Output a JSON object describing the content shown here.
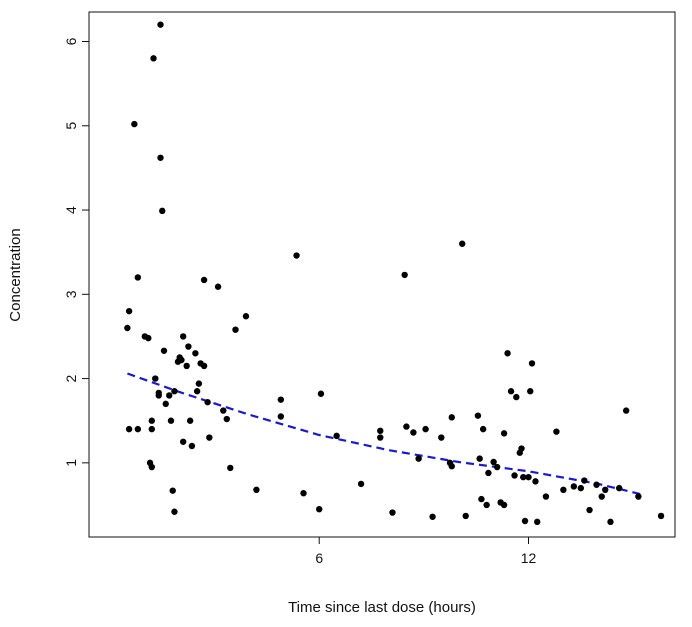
{
  "chart_data": {
    "type": "scatter",
    "title": "",
    "xlabel": "Time since last dose (hours)",
    "ylabel": "Concentration",
    "xlim": [
      -0.6,
      16.2
    ],
    "ylim": [
      0.12,
      6.35
    ],
    "xticks": [
      6,
      12
    ],
    "yticks": [
      1,
      2,
      3,
      4,
      5,
      6
    ],
    "grid": false,
    "point_color": "#000000",
    "series": [
      {
        "points": [
          [
            0.55,
            2.8
          ],
          [
            0.5,
            2.6
          ],
          [
            0.55,
            1.4
          ],
          [
            0.8,
            1.4
          ],
          [
            0.7,
            5.02
          ],
          [
            0.8,
            3.2
          ],
          [
            1.0,
            2.5
          ],
          [
            1.1,
            2.48
          ],
          [
            1.15,
            1.0
          ],
          [
            1.2,
            0.95
          ],
          [
            1.2,
            1.4
          ],
          [
            1.2,
            1.5
          ],
          [
            1.25,
            5.8
          ],
          [
            1.3,
            2.0
          ],
          [
            1.4,
            1.8
          ],
          [
            1.4,
            1.83
          ],
          [
            1.45,
            6.2
          ],
          [
            1.45,
            4.62
          ],
          [
            1.5,
            3.99
          ],
          [
            1.55,
            2.33
          ],
          [
            1.6,
            1.7
          ],
          [
            1.7,
            1.8
          ],
          [
            1.75,
            1.5
          ],
          [
            1.8,
            0.67
          ],
          [
            1.85,
            0.42
          ],
          [
            1.85,
            1.85
          ],
          [
            1.95,
            2.2
          ],
          [
            2.0,
            2.25
          ],
          [
            2.05,
            2.22
          ],
          [
            2.1,
            2.5
          ],
          [
            2.1,
            1.25
          ],
          [
            2.2,
            2.15
          ],
          [
            2.25,
            2.38
          ],
          [
            2.3,
            1.5
          ],
          [
            2.35,
            1.2
          ],
          [
            2.45,
            2.3
          ],
          [
            2.5,
            1.85
          ],
          [
            2.55,
            1.94
          ],
          [
            2.6,
            2.18
          ],
          [
            2.7,
            3.17
          ],
          [
            2.7,
            2.15
          ],
          [
            2.8,
            1.72
          ],
          [
            2.85,
            1.3
          ],
          [
            3.1,
            3.09
          ],
          [
            3.25,
            1.62
          ],
          [
            3.35,
            1.52
          ],
          [
            3.45,
            0.94
          ],
          [
            3.6,
            2.58
          ],
          [
            3.9,
            2.74
          ],
          [
            4.2,
            0.68
          ],
          [
            4.9,
            1.55
          ],
          [
            4.9,
            1.75
          ],
          [
            5.35,
            3.46
          ],
          [
            5.55,
            0.64
          ],
          [
            6.0,
            0.45
          ],
          [
            6.05,
            1.82
          ],
          [
            6.5,
            1.32
          ],
          [
            7.2,
            0.75
          ],
          [
            7.75,
            1.38
          ],
          [
            7.75,
            1.3
          ],
          [
            8.1,
            0.41
          ],
          [
            8.45,
            3.23
          ],
          [
            8.5,
            1.43
          ],
          [
            8.7,
            1.36
          ],
          [
            8.85,
            1.05
          ],
          [
            9.05,
            1.4
          ],
          [
            9.25,
            0.36
          ],
          [
            9.5,
            1.3
          ],
          [
            9.75,
            1.0
          ],
          [
            9.8,
            1.54
          ],
          [
            9.8,
            0.96
          ],
          [
            10.1,
            3.6
          ],
          [
            10.2,
            0.37
          ],
          [
            10.55,
            1.56
          ],
          [
            10.6,
            1.05
          ],
          [
            10.65,
            0.57
          ],
          [
            10.7,
            1.4
          ],
          [
            10.8,
            0.5
          ],
          [
            10.85,
            0.88
          ],
          [
            11.0,
            1.01
          ],
          [
            11.1,
            0.95
          ],
          [
            11.2,
            0.53
          ],
          [
            11.3,
            0.5
          ],
          [
            11.3,
            1.35
          ],
          [
            11.4,
            2.3
          ],
          [
            11.5,
            1.85
          ],
          [
            11.6,
            0.85
          ],
          [
            11.65,
            1.78
          ],
          [
            11.75,
            1.12
          ],
          [
            11.8,
            1.17
          ],
          [
            11.85,
            0.83
          ],
          [
            11.9,
            0.31
          ],
          [
            12.0,
            0.83
          ],
          [
            12.05,
            1.85
          ],
          [
            12.1,
            2.18
          ],
          [
            12.2,
            0.78
          ],
          [
            12.25,
            0.3
          ],
          [
            12.5,
            0.6
          ],
          [
            12.8,
            1.37
          ],
          [
            13.0,
            0.68
          ],
          [
            13.3,
            0.72
          ],
          [
            13.5,
            0.7
          ],
          [
            13.6,
            0.79
          ],
          [
            13.75,
            0.44
          ],
          [
            13.95,
            0.74
          ],
          [
            14.1,
            0.6
          ],
          [
            14.2,
            0.68
          ],
          [
            14.35,
            0.3
          ],
          [
            14.6,
            0.7
          ],
          [
            14.8,
            1.62
          ],
          [
            15.15,
            0.6
          ],
          [
            15.8,
            0.37
          ]
        ]
      }
    ],
    "fit_line": {
      "style": "dashed",
      "color": "#1a1acc",
      "x": [
        0.5,
        2,
        4,
        6,
        8,
        10,
        12,
        14,
        15.3
      ],
      "y": [
        2.06,
        1.84,
        1.57,
        1.33,
        1.15,
        1.01,
        0.9,
        0.75,
        0.62
      ]
    }
  }
}
